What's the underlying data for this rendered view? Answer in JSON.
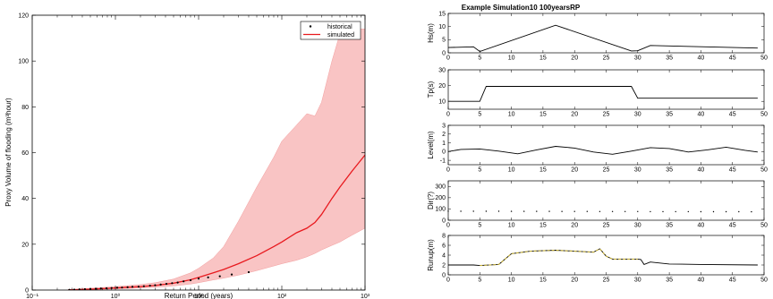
{
  "chart_data": [
    {
      "type": "scatter",
      "xlabel": "Return Period (years)",
      "ylabel": "Proxy Volume of flooding (m³hour)",
      "xscale": "log",
      "xlim": [
        0.1,
        1000
      ],
      "ylim": [
        0,
        120
      ],
      "xticks": [
        0.1,
        1,
        10,
        100,
        1000
      ],
      "xtick_labels": [
        "10⁻¹",
        "10⁰",
        "10¹",
        "10²",
        "10³"
      ],
      "yticks": [
        0,
        20,
        40,
        60,
        80,
        100,
        120
      ],
      "legend": {
        "position": "top-right",
        "entries": [
          "historical",
          "simulated"
        ]
      },
      "colors": {
        "historical": "#000000",
        "simulated": "#e8191e",
        "band": "#f9c4c4"
      },
      "historical": {
        "x": [
          0.28,
          0.32,
          0.37,
          0.43,
          0.5,
          0.58,
          0.67,
          0.78,
          0.9,
          1.05,
          1.2,
          1.4,
          1.6,
          1.9,
          2.2,
          2.6,
          3.0,
          3.5,
          4.1,
          4.8,
          5.6,
          6.6,
          8,
          10,
          13,
          18,
          25,
          40
        ],
        "y": [
          0.1,
          0.2,
          0.3,
          0.4,
          0.5,
          0.6,
          0.7,
          0.8,
          0.9,
          1.0,
          1.1,
          1.2,
          1.4,
          1.5,
          1.7,
          1.9,
          2.1,
          2.4,
          2.7,
          3.0,
          3.3,
          3.8,
          4.3,
          5.0,
          5.5,
          6.0,
          6.8,
          7.8
        ]
      },
      "simulated": {
        "x": [
          0.27,
          0.5,
          1,
          2,
          3,
          5,
          8,
          10,
          15,
          20,
          30,
          50,
          80,
          100,
          150,
          200,
          250,
          300,
          400,
          500,
          700,
          1000
        ],
        "y": [
          0.05,
          0.4,
          0.9,
          1.5,
          2.0,
          3.0,
          4.5,
          5.5,
          7.5,
          9.0,
          11.5,
          15.0,
          19.0,
          21.0,
          25.0,
          27.0,
          29.5,
          33.0,
          40.0,
          45.0,
          52.0,
          59.0
        ],
        "lower": [
          0.0,
          0.2,
          0.5,
          0.9,
          1.2,
          1.8,
          2.6,
          3.2,
          4.4,
          5.2,
          6.5,
          8.5,
          10.5,
          11.5,
          13.0,
          14.5,
          16.0,
          17.5,
          19.5,
          21.0,
          24.0,
          27.0
        ],
        "upper": [
          0.2,
          0.8,
          1.5,
          2.4,
          3.2,
          4.8,
          7.5,
          9.5,
          14.0,
          19.0,
          30.0,
          45.0,
          58.0,
          65.0,
          72.0,
          77.0,
          76.0,
          82.0,
          100.0,
          112.0,
          114.0,
          114.0
        ]
      }
    },
    {
      "type": "line",
      "title": "Example Simulation10 100yearsRP",
      "xlim": [
        0,
        50
      ],
      "xticks": [
        0,
        5,
        10,
        15,
        20,
        25,
        30,
        35,
        40,
        45,
        50
      ],
      "panels": [
        {
          "ylabel": "Hs(m)",
          "ylim": [
            0,
            15
          ],
          "yticks": [
            0,
            5,
            10,
            15
          ],
          "x": [
            0,
            4,
            5,
            17,
            29,
            30,
            32,
            49
          ],
          "y": [
            2,
            2.3,
            0.5,
            10.5,
            0.7,
            0.8,
            2.8,
            1.8
          ]
        },
        {
          "ylabel": "Tp(s)",
          "ylim": [
            5,
            30
          ],
          "yticks": [
            10,
            20,
            30
          ],
          "x": [
            0,
            5,
            6,
            29,
            30,
            49
          ],
          "y": [
            10,
            10,
            19.5,
            19.5,
            12,
            12
          ]
        },
        {
          "ylabel": "Level(m)",
          "ylim": [
            -1.5,
            3
          ],
          "yticks": [
            -1,
            0,
            1,
            2,
            3
          ],
          "x": [
            0,
            2,
            5,
            8,
            11,
            14,
            17,
            20,
            23,
            26,
            29,
            32,
            35,
            38,
            41,
            44,
            47,
            49
          ],
          "y": [
            0.0,
            0.25,
            0.3,
            0.05,
            -0.25,
            0.2,
            0.6,
            0.4,
            -0.05,
            -0.3,
            0.05,
            0.45,
            0.35,
            -0.05,
            0.2,
            0.5,
            0.15,
            -0.05
          ]
        },
        {
          "ylabel": "Dir(?)",
          "ylim": [
            0,
            350
          ],
          "yticks": [
            0,
            100,
            200,
            300
          ],
          "style": "dotted",
          "x": [
            0,
            49
          ],
          "y": [
            80,
            75
          ]
        },
        {
          "ylabel": "Runup(m)",
          "ylim": [
            0,
            8
          ],
          "yticks": [
            0,
            2,
            4,
            6,
            8
          ],
          "x": [
            0,
            4,
            5,
            8,
            10,
            13,
            17,
            20,
            23,
            24,
            25,
            26,
            27,
            30,
            30.5,
            31,
            32,
            35,
            40,
            49
          ],
          "y": [
            2.0,
            2.0,
            1.9,
            2.1,
            4.3,
            4.8,
            5.0,
            4.8,
            4.6,
            5.3,
            3.8,
            3.2,
            3.2,
            3.2,
            3.1,
            2.1,
            2.6,
            2.2,
            2.1,
            2.0
          ],
          "highlight": {
            "x_from": 5,
            "x_to": 30,
            "color": "#c9b33a"
          }
        }
      ]
    }
  ]
}
